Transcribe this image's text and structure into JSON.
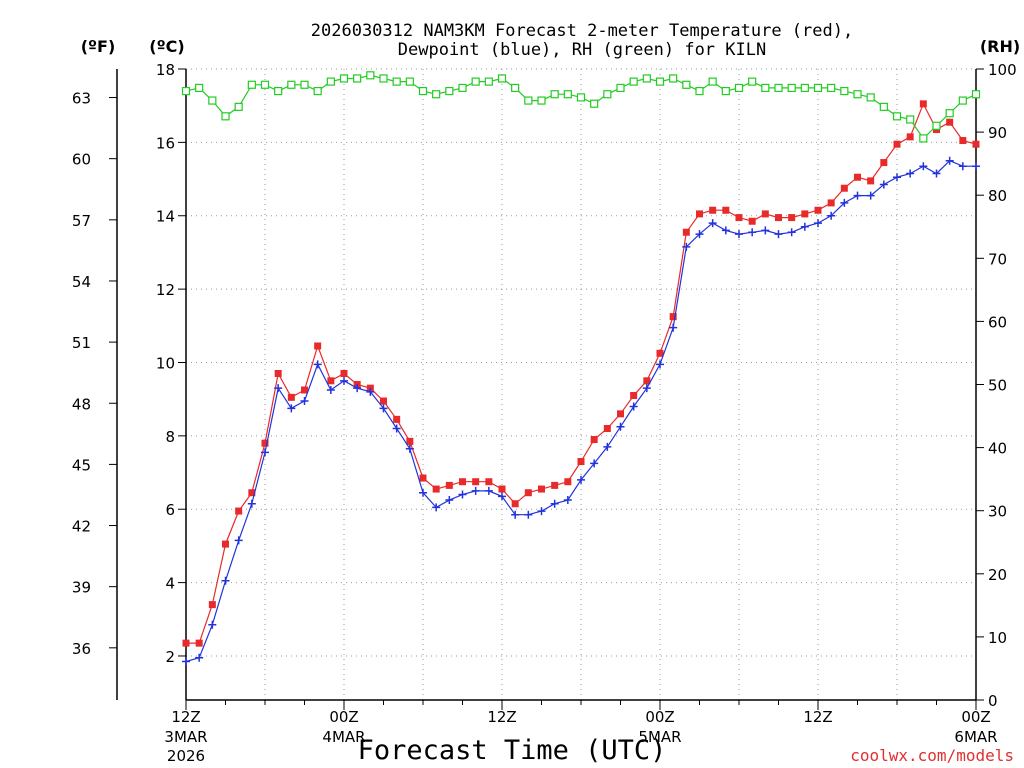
{
  "chart_data": {
    "type": "line",
    "title_line1": "2026030312 NAM3KM Forecast 2-meter Temperature (red),",
    "title_line2": "Dewpoint (blue), RH (green) for KILN",
    "units": {
      "fahrenheit": "(ºF)",
      "celsius": "(ºC)",
      "rh": "(RH)"
    },
    "xlabel": "Forecast Time (UTC)",
    "credit": "coolwx.com/models",
    "x_ticks": [
      {
        "hour": 0,
        "line1": "12Z",
        "line2": "3MAR",
        "line3": "2026"
      },
      {
        "hour": 12,
        "line1": "00Z",
        "line2": "4MAR",
        "line3": ""
      },
      {
        "hour": 24,
        "line1": "12Z",
        "line2": "",
        "line3": ""
      },
      {
        "hour": 36,
        "line1": "00Z",
        "line2": "5MAR",
        "line3": ""
      },
      {
        "hour": 48,
        "line1": "12Z",
        "line2": "",
        "line3": ""
      },
      {
        "hour": 60,
        "line1": "00Z",
        "line2": "6MAR",
        "line3": ""
      }
    ],
    "x_range": [
      0,
      60
    ],
    "celsius_range": [
      0.8,
      18
    ],
    "celsius_ticks": [
      "2",
      "4",
      "6",
      "8",
      "10",
      "12",
      "14",
      "16",
      "18"
    ],
    "fahrenheit_ticks": [
      "36",
      "39",
      "42",
      "45",
      "48",
      "51",
      "54",
      "57",
      "60",
      "63"
    ],
    "rh_range": [
      0,
      100
    ],
    "rh_ticks": [
      "0",
      "10",
      "20",
      "30",
      "40",
      "50",
      "60",
      "70",
      "80",
      "90",
      "100"
    ],
    "series": [
      {
        "name": "Temperature",
        "color": "#e82a2a",
        "axis": "celsius",
        "values": [
          2.35,
          2.35,
          3.4,
          5.05,
          5.95,
          6.45,
          7.8,
          9.7,
          9.05,
          9.25,
          10.45,
          9.5,
          9.7,
          9.4,
          9.3,
          8.95,
          8.45,
          7.85,
          6.85,
          6.55,
          6.65,
          6.75,
          6.75,
          6.75,
          6.55,
          6.15,
          6.45,
          6.55,
          6.65,
          6.75,
          7.3,
          7.9,
          8.2,
          8.6,
          9.1,
          9.5,
          10.25,
          11.25,
          13.55,
          14.05,
          14.15,
          14.15,
          13.95,
          13.85,
          14.05,
          13.95,
          13.95,
          14.05,
          14.15,
          14.35,
          14.75,
          15.05,
          14.95,
          15.45,
          15.95,
          16.15,
          17.05,
          16.35,
          16.55,
          16.05,
          15.95
        ]
      },
      {
        "name": "Dewpoint",
        "color": "#2233dd",
        "axis": "celsius",
        "values": [
          1.85,
          1.95,
          2.85,
          4.05,
          5.15,
          6.15,
          7.55,
          9.3,
          8.75,
          8.95,
          9.95,
          9.25,
          9.5,
          9.3,
          9.2,
          8.75,
          8.2,
          7.65,
          6.45,
          6.05,
          6.25,
          6.4,
          6.5,
          6.5,
          6.35,
          5.85,
          5.85,
          5.95,
          6.15,
          6.25,
          6.8,
          7.25,
          7.7,
          8.25,
          8.8,
          9.3,
          9.95,
          10.95,
          13.15,
          13.5,
          13.8,
          13.6,
          13.5,
          13.55,
          13.6,
          13.5,
          13.55,
          13.7,
          13.8,
          14.0,
          14.35,
          14.55,
          14.55,
          14.85,
          15.05,
          15.15,
          15.35,
          15.15,
          15.5,
          15.35,
          15.35
        ]
      },
      {
        "name": "RH",
        "color": "#22cc22",
        "axis": "rh",
        "values": [
          96.5,
          97.0,
          95.0,
          92.5,
          94.0,
          97.5,
          97.5,
          96.5,
          97.5,
          97.5,
          96.5,
          98.0,
          98.5,
          98.5,
          99.0,
          98.5,
          98.0,
          98.0,
          96.5,
          96.0,
          96.5,
          97.0,
          98.0,
          98.0,
          98.5,
          97.0,
          95.0,
          95.0,
          96.0,
          96.0,
          95.5,
          94.5,
          96.0,
          97.0,
          98.0,
          98.5,
          98.0,
          98.5,
          97.5,
          96.5,
          98.0,
          96.5,
          97.0,
          98.0,
          97.0,
          97.0,
          97.0,
          97.0,
          97.0,
          97.0,
          96.5,
          96.0,
          95.5,
          94.0,
          92.5,
          92.0,
          89.0,
          91.0,
          93.0,
          95.0,
          96.0
        ]
      }
    ]
  }
}
